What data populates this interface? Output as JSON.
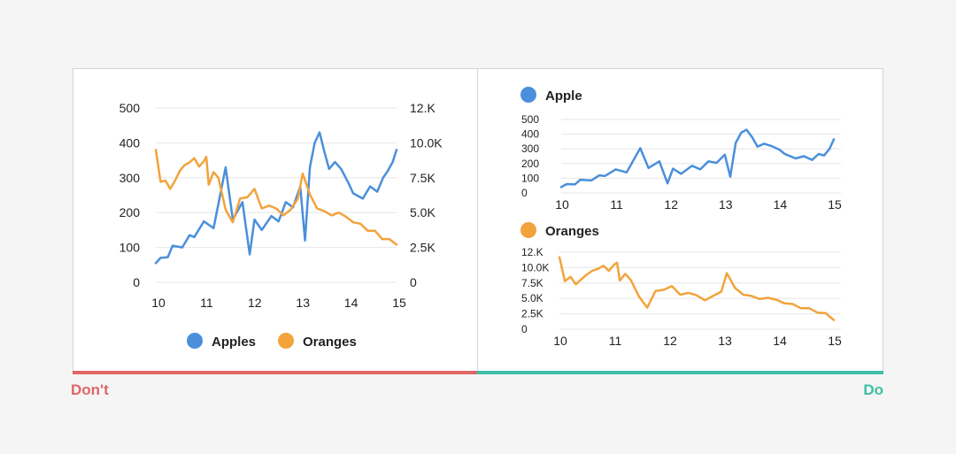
{
  "colors": {
    "apples": "#4a8fdb",
    "oranges": "#f2a33c",
    "dont": "#e06666",
    "do": "#3cbfa6",
    "text": "#222222",
    "grid": "#e6e6e6"
  },
  "labels": {
    "dont": "Don't",
    "do": "Do"
  },
  "chart_data": [
    {
      "type": "line",
      "dual_axis": true,
      "x_ticks": [
        "10",
        "11",
        "12",
        "13",
        "14",
        "15"
      ],
      "x_range": [
        10,
        15
      ],
      "left_axis": {
        "ticks": [
          "0",
          "100",
          "200",
          "300",
          "400",
          "500"
        ],
        "range": [
          0,
          500
        ]
      },
      "right_axis": {
        "ticks": [
          "0",
          "2.5K",
          "5.0K",
          "7.5K",
          "10.0K",
          "12.K"
        ],
        "range": [
          0,
          12500
        ]
      },
      "legend_position": "bottom",
      "grid": true,
      "series": [
        {
          "name": "Apples",
          "axis": "left",
          "x": [
            10,
            10.1,
            10.25,
            10.35,
            10.55,
            10.7,
            10.8,
            11.0,
            11.2,
            11.45,
            11.6,
            11.8,
            11.95,
            12.05,
            12.2,
            12.4,
            12.55,
            12.7,
            12.85,
            13.0,
            13.1,
            13.2,
            13.3,
            13.4,
            13.5,
            13.6,
            13.72,
            13.85,
            14.0,
            14.1,
            14.3,
            14.45,
            14.6,
            14.72,
            14.82,
            14.92,
            15.0
          ],
          "y": [
            55,
            70,
            72,
            105,
            100,
            135,
            130,
            175,
            155,
            330,
            180,
            230,
            80,
            180,
            150,
            190,
            175,
            230,
            215,
            275,
            120,
            330,
            400,
            430,
            375,
            325,
            345,
            325,
            285,
            255,
            240,
            275,
            260,
            300,
            320,
            345,
            380
          ]
        },
        {
          "name": "Oranges",
          "axis": "right",
          "x": [
            10,
            10.1,
            10.2,
            10.3,
            10.4,
            10.5,
            10.6,
            10.7,
            10.8,
            10.9,
            11.0,
            11.05,
            11.1,
            11.2,
            11.3,
            11.45,
            11.6,
            11.75,
            11.9,
            12.05,
            12.2,
            12.35,
            12.5,
            12.65,
            12.8,
            12.95,
            13.05,
            13.2,
            13.35,
            13.5,
            13.65,
            13.8,
            13.95,
            14.1,
            14.25,
            14.4,
            14.55,
            14.7,
            14.85,
            15.0
          ],
          "y": [
            9500,
            7200,
            7300,
            6700,
            7300,
            8000,
            8400,
            8600,
            8900,
            8300,
            8700,
            9000,
            7000,
            7900,
            7500,
            5200,
            4300,
            6000,
            6100,
            6700,
            5300,
            5500,
            5300,
            4800,
            5200,
            6000,
            7800,
            6300,
            5300,
            5100,
            4800,
            5000,
            4700,
            4300,
            4200,
            3700,
            3700,
            3100,
            3100,
            2700
          ]
        }
      ]
    },
    {
      "type": "line",
      "legend": "Apple",
      "x_ticks": [
        "10",
        "11",
        "12",
        "13",
        "14",
        "15"
      ],
      "x_range": [
        10,
        15
      ],
      "y_ticks": [
        "0",
        "100",
        "200",
        "300",
        "400",
        "500"
      ],
      "y_range": [
        0,
        500
      ],
      "grid": true,
      "series": [
        {
          "name": "Apple",
          "x": [
            10,
            10.1,
            10.25,
            10.35,
            10.55,
            10.7,
            10.8,
            11.0,
            11.2,
            11.45,
            11.6,
            11.8,
            11.95,
            12.05,
            12.2,
            12.4,
            12.55,
            12.7,
            12.85,
            13.0,
            13.1,
            13.2,
            13.3,
            13.4,
            13.5,
            13.6,
            13.72,
            13.85,
            14.0,
            14.1,
            14.3,
            14.45,
            14.6,
            14.72,
            14.82,
            14.92,
            15.0
          ],
          "y": [
            40,
            60,
            58,
            90,
            85,
            120,
            115,
            160,
            140,
            305,
            170,
            215,
            65,
            165,
            130,
            185,
            160,
            215,
            205,
            260,
            110,
            340,
            410,
            430,
            380,
            315,
            335,
            320,
            295,
            265,
            235,
            250,
            225,
            265,
            255,
            300,
            365
          ]
        }
      ]
    },
    {
      "type": "line",
      "legend": "Oranges",
      "x_ticks": [
        "10",
        "11",
        "12",
        "13",
        "14",
        "15"
      ],
      "x_range": [
        10,
        15
      ],
      "y_ticks": [
        "0",
        "2.5K",
        "5.0K",
        "7.5K",
        "10.0K",
        "12.K"
      ],
      "y_range": [
        0,
        12500
      ],
      "grid": true,
      "series": [
        {
          "name": "Oranges",
          "x": [
            10,
            10.1,
            10.2,
            10.3,
            10.4,
            10.5,
            10.6,
            10.7,
            10.8,
            10.9,
            11.0,
            11.05,
            11.1,
            11.2,
            11.3,
            11.45,
            11.6,
            11.75,
            11.9,
            12.05,
            12.2,
            12.35,
            12.5,
            12.65,
            12.8,
            12.95,
            13.05,
            13.2,
            13.35,
            13.5,
            13.65,
            13.8,
            13.95,
            14.1,
            14.25,
            14.4,
            14.55,
            14.7,
            14.85,
            15.0
          ],
          "y": [
            11700,
            7800,
            8500,
            7300,
            8100,
            8900,
            9500,
            9800,
            10300,
            9500,
            10500,
            10800,
            7900,
            9000,
            8000,
            5300,
            3500,
            6200,
            6400,
            7000,
            5600,
            5900,
            5500,
            4700,
            5400,
            6100,
            9100,
            6700,
            5600,
            5400,
            4900,
            5100,
            4800,
            4200,
            4100,
            3400,
            3400,
            2700,
            2600,
            1500
          ]
        }
      ]
    }
  ]
}
